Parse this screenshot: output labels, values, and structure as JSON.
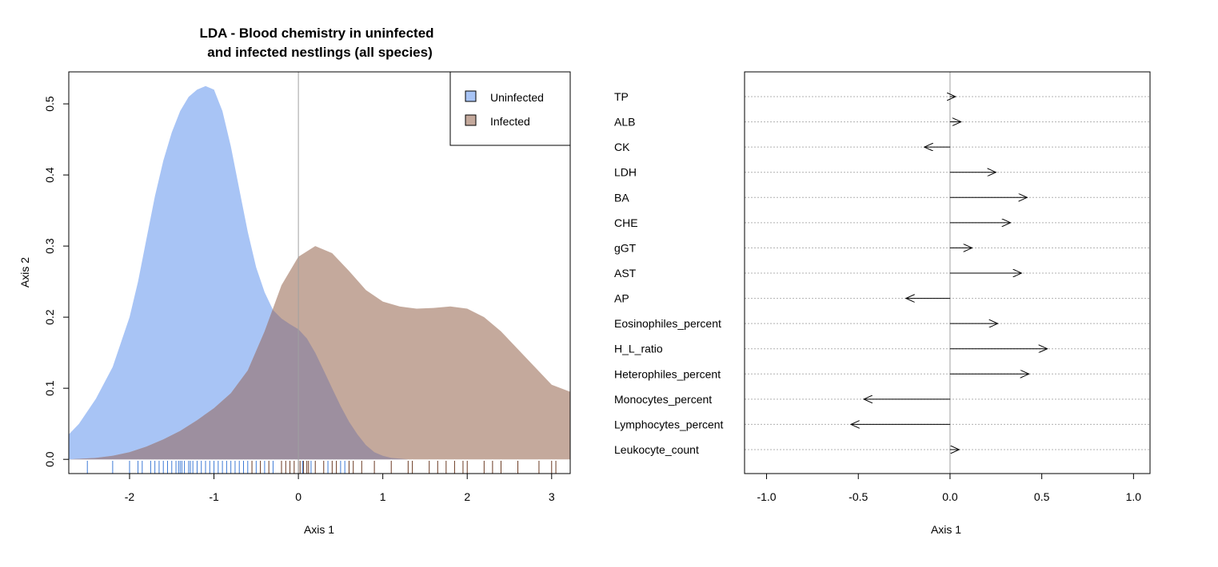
{
  "chart_data": [
    {
      "type": "area",
      "title_lines": [
        "LDA - Blood chemistry in uninfected",
        "and infected nestlings (all species)"
      ],
      "xlabel": "Axis 1",
      "ylabel": "Axis 2",
      "xlim": [
        -2.72,
        3.22
      ],
      "ylim": [
        -0.02,
        0.545
      ],
      "xticks": [
        "-2",
        "-1",
        "0",
        "1",
        "2",
        "3"
      ],
      "xtick_values": [
        -2,
        -1,
        0,
        1,
        2,
        3
      ],
      "yticks": [
        "0.0",
        "0.1",
        "0.2",
        "0.3",
        "0.4",
        "0.5"
      ],
      "ytick_values": [
        0,
        0.1,
        0.2,
        0.3,
        0.4,
        0.5
      ],
      "vline_x": 0,
      "legend_position": "top-right",
      "colors": {
        "uninfected": "#a8c4f5",
        "infected": "#c4a99c",
        "overlap": "#9d8f9f",
        "rug_uninfected": "#3f7bd6",
        "rug_infected": "#6b3a22"
      },
      "series": [
        {
          "name": "Uninfected",
          "x": [
            -2.72,
            -2.6,
            -2.4,
            -2.2,
            -2.0,
            -1.9,
            -1.8,
            -1.7,
            -1.6,
            -1.5,
            -1.4,
            -1.3,
            -1.2,
            -1.1,
            -1.0,
            -0.9,
            -0.8,
            -0.7,
            -0.6,
            -0.5,
            -0.4,
            -0.3,
            -0.2,
            -0.1,
            0.0,
            0.1,
            0.2,
            0.3,
            0.4,
            0.5,
            0.6,
            0.7,
            0.8,
            0.9,
            1.0,
            1.1,
            1.2,
            1.3,
            1.4
          ],
          "values": [
            0.035,
            0.05,
            0.085,
            0.13,
            0.2,
            0.25,
            0.31,
            0.37,
            0.42,
            0.46,
            0.49,
            0.51,
            0.52,
            0.525,
            0.52,
            0.49,
            0.44,
            0.38,
            0.32,
            0.27,
            0.235,
            0.21,
            0.198,
            0.19,
            0.183,
            0.17,
            0.15,
            0.125,
            0.1,
            0.075,
            0.053,
            0.035,
            0.02,
            0.01,
            0.005,
            0.002,
            0.001,
            0.0,
            0.0
          ]
        },
        {
          "name": "Infected",
          "x": [
            -2.72,
            -2.4,
            -2.2,
            -2.0,
            -1.8,
            -1.6,
            -1.4,
            -1.2,
            -1.0,
            -0.8,
            -0.6,
            -0.4,
            -0.2,
            0.0,
            0.2,
            0.4,
            0.6,
            0.8,
            1.0,
            1.2,
            1.4,
            1.6,
            1.8,
            2.0,
            2.2,
            2.4,
            2.6,
            2.8,
            3.0,
            3.22
          ],
          "values": [
            0.0,
            0.002,
            0.005,
            0.01,
            0.018,
            0.028,
            0.04,
            0.055,
            0.072,
            0.093,
            0.125,
            0.18,
            0.245,
            0.285,
            0.3,
            0.29,
            0.265,
            0.238,
            0.222,
            0.215,
            0.212,
            0.213,
            0.215,
            0.212,
            0.2,
            0.18,
            0.155,
            0.13,
            0.105,
            0.095
          ]
        }
      ],
      "rug_uninfected": [
        -2.5,
        -2.2,
        -2.0,
        -1.9,
        -1.85,
        -1.75,
        -1.7,
        -1.65,
        -1.6,
        -1.55,
        -1.5,
        -1.45,
        -1.42,
        -1.4,
        -1.38,
        -1.35,
        -1.3,
        -1.28,
        -1.25,
        -1.2,
        -1.15,
        -1.1,
        -1.05,
        -1.0,
        -0.95,
        -0.9,
        -0.85,
        -0.8,
        -0.75,
        -0.7,
        -0.65,
        -0.6,
        -0.5,
        -0.4,
        -0.3,
        -0.2,
        0.05,
        0.15,
        0.35,
        0.5,
        0.55
      ],
      "rug_infected": [
        -0.55,
        -0.45,
        -0.35,
        -0.2,
        -0.15,
        -0.1,
        -0.05,
        0.0,
        0.02,
        0.06,
        0.1,
        0.12,
        0.2,
        0.3,
        0.4,
        0.45,
        0.6,
        0.65,
        0.75,
        0.9,
        1.1,
        1.3,
        1.35,
        1.55,
        1.65,
        1.75,
        1.85,
        1.95,
        2.0,
        2.2,
        2.3,
        2.4,
        2.6,
        2.85,
        3.0,
        3.05
      ]
    },
    {
      "type": "arrow",
      "xlabel": "Axis 1",
      "xlim": [
        -1.12,
        1.09
      ],
      "xticks": [
        "-1.0",
        "-0.5",
        "0.0",
        "0.5",
        "1.0"
      ],
      "xtick_values": [
        -1.0,
        -0.5,
        0.0,
        0.5,
        1.0
      ],
      "variables": [
        {
          "name": "TP",
          "value": 0.03
        },
        {
          "name": "ALB",
          "value": 0.06
        },
        {
          "name": "CK",
          "value": -0.14
        },
        {
          "name": "LDH",
          "value": 0.25
        },
        {
          "name": "BA",
          "value": 0.42
        },
        {
          "name": "CHE",
          "value": 0.33
        },
        {
          "name": "gGT",
          "value": 0.12
        },
        {
          "name": "AST",
          "value": 0.39
        },
        {
          "name": "AP",
          "value": -0.24
        },
        {
          "name": "Eosinophiles_percent",
          "value": 0.26
        },
        {
          "name": "H_L_ratio",
          "value": 0.53
        },
        {
          "name": "Heterophiles_percent",
          "value": 0.43
        },
        {
          "name": "Monocytes_percent",
          "value": -0.47
        },
        {
          "name": "Lymphocytes_percent",
          "value": -0.54
        },
        {
          "name": "Leukocyte_count",
          "value": 0.05
        }
      ]
    }
  ]
}
